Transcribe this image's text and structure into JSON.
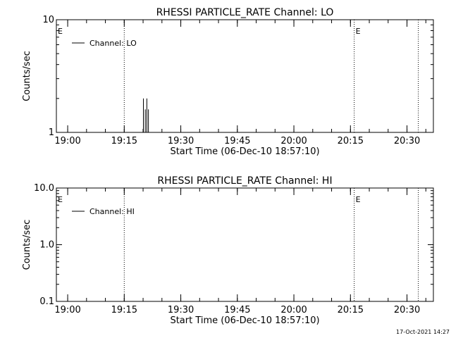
{
  "chart_data": [
    {
      "type": "line",
      "title": "RHESSI PARTICLE_RATE Channel: LO",
      "xlabel": "Start Time (06-Dec-10 18:57:10)",
      "ylabel": "Counts/sec",
      "yscale": "log",
      "ylim": [
        1,
        10
      ],
      "y_tick_labels": [
        "1",
        "10"
      ],
      "y_tick_values": [
        1,
        10
      ],
      "xlim": [
        "18:57",
        "20:37"
      ],
      "x_tick_labels": [
        "19:00",
        "19:15",
        "19:30",
        "19:45",
        "20:00",
        "20:15",
        "20:30"
      ],
      "x_tick_values": [
        "19:00",
        "19:15",
        "19:30",
        "19:45",
        "20:00",
        "20:15",
        "20:30"
      ],
      "legend": {
        "position": "top-left",
        "entries": [
          "Channel: LO"
        ]
      },
      "markers": [
        {
          "label": "E",
          "time": "18:57"
        },
        {
          "label": "",
          "time": "19:15"
        },
        {
          "label": "E",
          "time": "20:16"
        },
        {
          "label": "",
          "time": "20:33"
        }
      ],
      "series": [
        {
          "name": "Channel: LO",
          "color": "#000000",
          "spikes": [
            {
              "time": "19:20:05",
              "value": 2.0
            },
            {
              "time": "19:20:35",
              "value": 1.6
            },
            {
              "time": "19:21:00",
              "value": 2.0
            },
            {
              "time": "19:21:25",
              "value": 1.6
            }
          ]
        }
      ]
    },
    {
      "type": "line",
      "title": "RHESSI PARTICLE_RATE Channel: HI",
      "xlabel": "Start Time (06-Dec-10 18:57:10)",
      "ylabel": "Counts/sec",
      "yscale": "log",
      "ylim": [
        0.1,
        10
      ],
      "y_tick_labels": [
        "0.1",
        "1.0",
        "10.0"
      ],
      "y_tick_values": [
        0.1,
        1,
        10
      ],
      "xlim": [
        "18:57",
        "20:37"
      ],
      "x_tick_labels": [
        "19:00",
        "19:15",
        "19:30",
        "19:45",
        "20:00",
        "20:15",
        "20:30"
      ],
      "x_tick_values": [
        "19:00",
        "19:15",
        "19:30",
        "19:45",
        "20:00",
        "20:15",
        "20:30"
      ],
      "legend": {
        "position": "top-left",
        "entries": [
          "Channel: HI"
        ]
      },
      "markers": [
        {
          "label": "E",
          "time": "18:57"
        },
        {
          "label": "",
          "time": "19:15"
        },
        {
          "label": "E",
          "time": "20:16"
        },
        {
          "label": "",
          "time": "20:33"
        }
      ],
      "series": [
        {
          "name": "Channel: HI",
          "color": "#000000",
          "spikes": []
        }
      ]
    }
  ],
  "footer": {
    "timestamp": "17-Oct-2021 14:27"
  }
}
